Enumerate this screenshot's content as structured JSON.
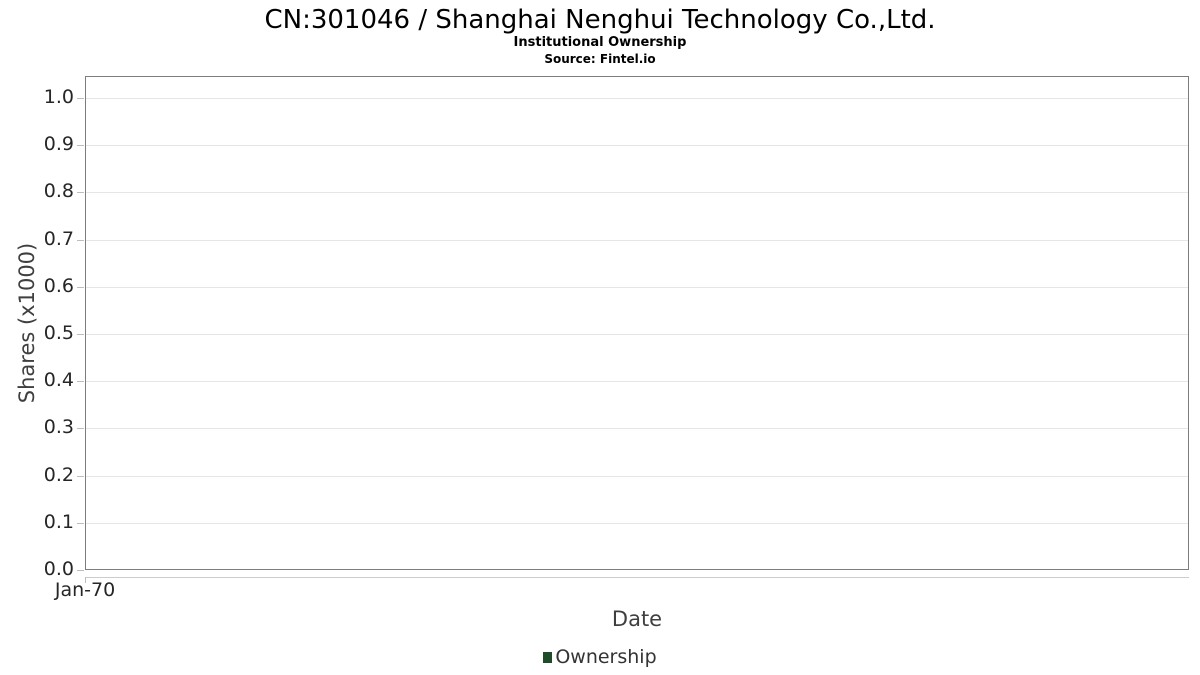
{
  "header": {
    "title": "CN:301046 / Shanghai Nenghui Technology Co.,Ltd.",
    "subtitle": "Institutional Ownership",
    "source": "Source: Fintel.io"
  },
  "chart_data": {
    "type": "line",
    "title": "CN:301046 / Shanghai Nenghui Technology Co.,Ltd.",
    "subtitle": "Institutional Ownership",
    "source": "Source: Fintel.io",
    "xlabel": "Date",
    "ylabel": "Shares (x1000)",
    "x_tick_labels": [
      "Jan-70"
    ],
    "y_tick_labels": [
      "0.0",
      "0.1",
      "0.2",
      "0.3",
      "0.4",
      "0.5",
      "0.6",
      "0.7",
      "0.8",
      "0.9",
      "1.0"
    ],
    "ylim": [
      0.0,
      1.05
    ],
    "grid": true,
    "legend_position": "bottom",
    "series": [
      {
        "name": "Ownership",
        "color": "#1e4b28",
        "x": [],
        "values": []
      }
    ],
    "colors": {
      "series_green": "#1e4b28",
      "plot_border": "#7d7d7d",
      "gridline": "#e6e6e6",
      "tick_label": "#262626",
      "axis_title": "#3f3f3f"
    }
  }
}
